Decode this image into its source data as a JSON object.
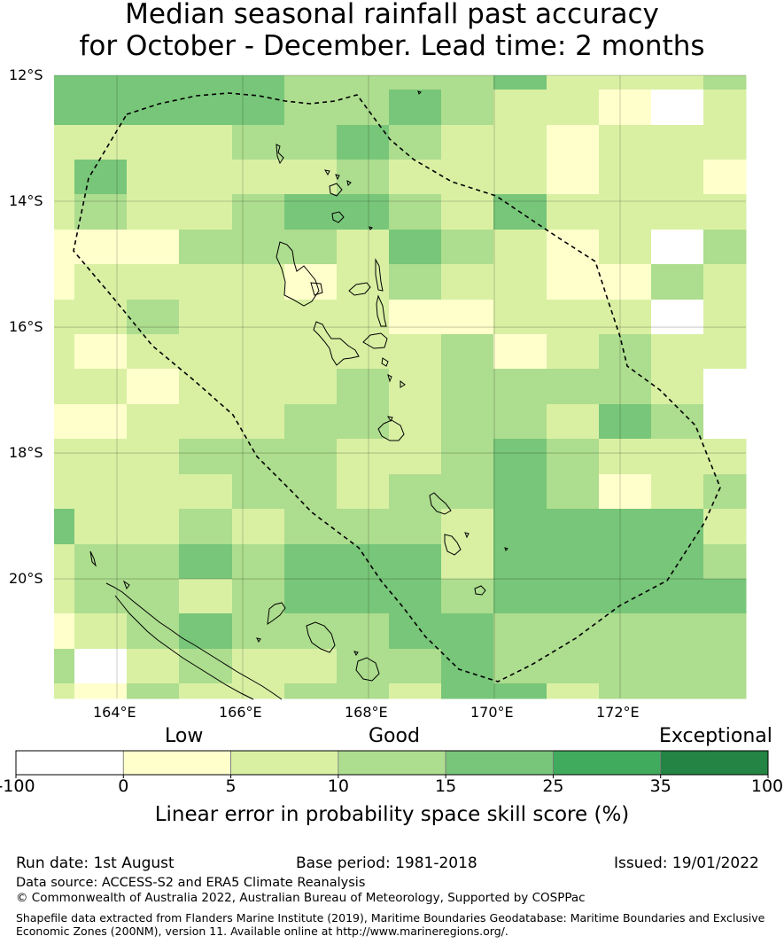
{
  "title": {
    "line1": "Median seasonal rainfall past accuracy",
    "line2": "for October - December. Lead time: 2 months"
  },
  "map": {
    "lat_labels": [
      "12°S",
      "14°S",
      "16°S",
      "18°S",
      "20°S"
    ],
    "lon_labels": [
      "164°E",
      "166°E",
      "168°E",
      "170°E",
      "172°E"
    ],
    "lat_values": [
      -12,
      -14,
      -16,
      -18,
      -20
    ],
    "lon_values": [
      164,
      166,
      168,
      170,
      172
    ],
    "extent": {
      "lon_min": 163.0,
      "lon_max": 174.0,
      "lat_min": -21.9,
      "lat_max": -12.0
    },
    "category_colors": {
      "w": "#ffffff",
      "y": "#ffffcc",
      "l": "#d9f0a3",
      "m": "#addd8e",
      "g": "#78c679",
      "d": "#41ab5d",
      "x": "#238443"
    },
    "boundary_style": "dashed-black",
    "coastline_color": "#000000"
  },
  "legend": {
    "category_labels": [
      "Low",
      "Good",
      "Exceptional"
    ],
    "ticks": [
      "-100",
      "0",
      "5",
      "10",
      "15",
      "25",
      "35",
      "100"
    ],
    "colors": [
      "#ffffff",
      "#ffffcc",
      "#d9f0a3",
      "#addd8e",
      "#78c679",
      "#41ab5d",
      "#238443"
    ],
    "title": "Linear error in probability space skill score (%)"
  },
  "footer": {
    "run_date": "Run date: 1st August",
    "base_period": "Base period: 1981-2018",
    "issued": "Issued: 19/01/2022",
    "data_source": "Data source: ACCESS-S2 and ERA5 Climate Reanalysis",
    "copyright": "© Commonwealth of Australia 2022, Australian Bureau of Meteorology, Supported by COSPPac",
    "shapefile_line1": "Shapefile data extracted from Flanders Marine Institute (2019), Maritime Boundaries Geodatabase: Maritime Boundaries and Exclusive",
    "shapefile_line2": "Economic Zones (200NM), version 11. Available online at http://www.marineregions.org/."
  }
}
